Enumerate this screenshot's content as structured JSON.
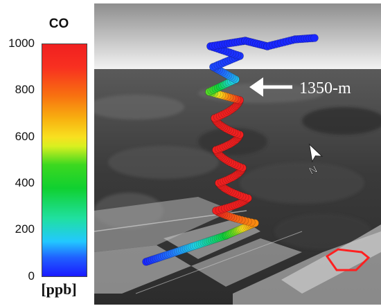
{
  "colorbar": {
    "title": "CO",
    "unit": "[ppb]",
    "min": 0,
    "max": 1000,
    "ticks": [
      "1000",
      "800",
      "600",
      "400",
      "200",
      "0"
    ]
  },
  "annotation": {
    "label": "1350-m"
  },
  "compass": {
    "label": "N"
  },
  "colors": {
    "low": "#1a1aff",
    "mid": "#10d030",
    "high": "#f02020",
    "marker": "#ff2020"
  }
}
